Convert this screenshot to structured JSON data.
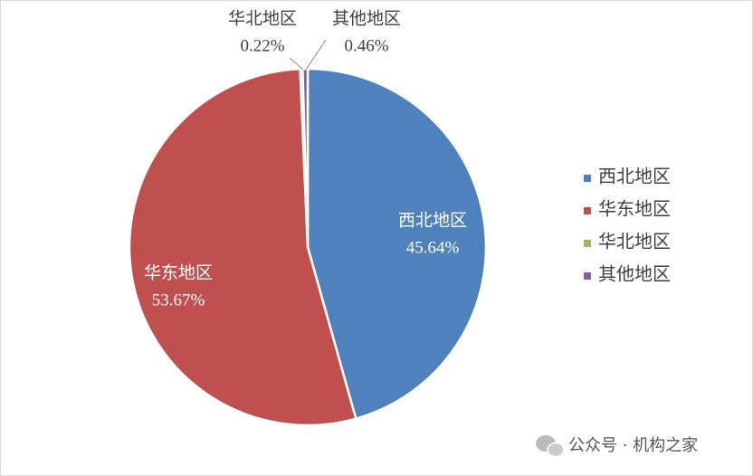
{
  "chart_data": {
    "type": "pie",
    "categories": [
      "西北地区",
      "华东地区",
      "华北地区",
      "其他地区"
    ],
    "values": [
      45.64,
      53.67,
      0.22,
      0.46
    ],
    "value_labels": [
      "45.64%",
      "53.67%",
      "0.22%",
      "0.46%"
    ],
    "colors": [
      "#4f81bd",
      "#c0504d",
      "#9bbb59",
      "#8064a2"
    ],
    "legend": "right",
    "watermark": "公众号 · 机构之家"
  }
}
